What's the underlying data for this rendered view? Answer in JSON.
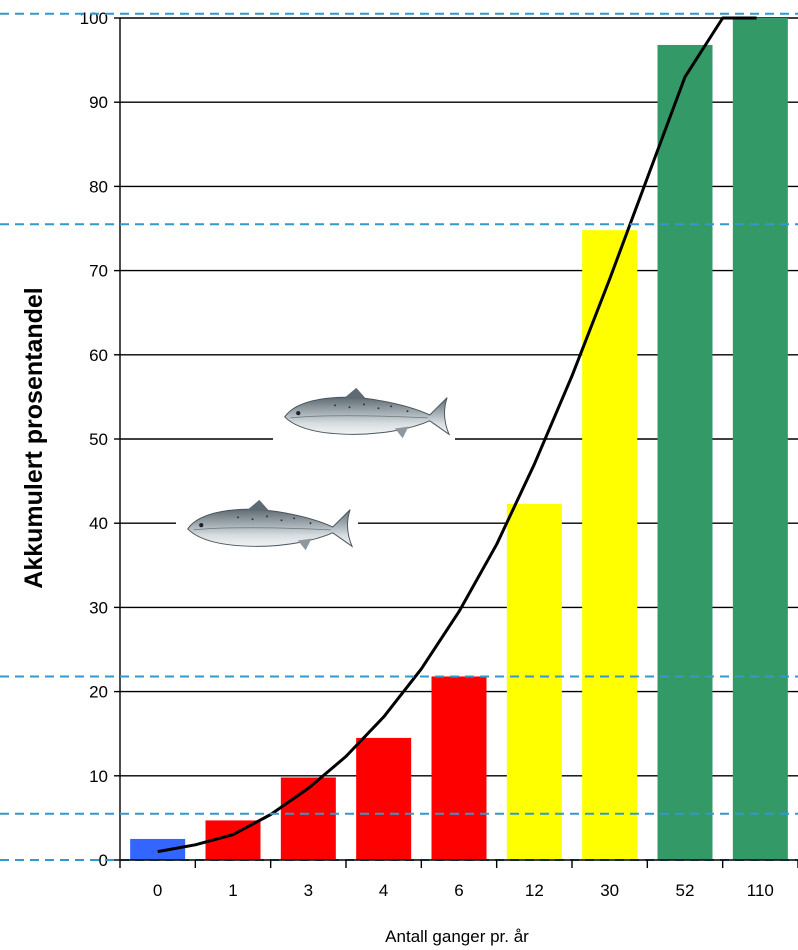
{
  "chart_data": {
    "type": "bar",
    "title": "",
    "xlabel": "Antall ganger pr. år",
    "ylabel": "Akkumulert prosentandel",
    "categories": [
      "0",
      "1",
      "3",
      "4",
      "6",
      "12",
      "30",
      "52",
      "110"
    ],
    "values": [
      2.5,
      4.7,
      9.8,
      14.5,
      21.8,
      42.3,
      74.8,
      96.8,
      100
    ],
    "bar_colors": [
      "#3366ff",
      "#ff0000",
      "#ff0000",
      "#ff0000",
      "#ff0000",
      "#ffff00",
      "#ffff00",
      "#339966",
      "#339966"
    ],
    "ylim": [
      0,
      100
    ],
    "yticks": [
      0,
      10,
      20,
      30,
      40,
      50,
      60,
      70,
      80,
      90,
      100
    ],
    "grid": true,
    "curve": {
      "color": "#000000",
      "x": [
        0,
        0.5,
        1,
        1.5,
        2,
        2.5,
        3,
        3.5,
        4,
        4.5,
        5,
        5.5,
        6,
        6.5,
        7,
        7.5,
        7.95
      ],
      "y": [
        1,
        1.8,
        3,
        5.4,
        8.5,
        12.3,
        17,
        22.7,
        29.5,
        37.5,
        47,
        57.5,
        69,
        81,
        93,
        100,
        100
      ]
    },
    "reference_lines": {
      "color": "#3399cc",
      "values": [
        0,
        5.5,
        21.8,
        75.5,
        100.5
      ]
    }
  },
  "decorations": {
    "fish_icon": "salmon-icon"
  }
}
